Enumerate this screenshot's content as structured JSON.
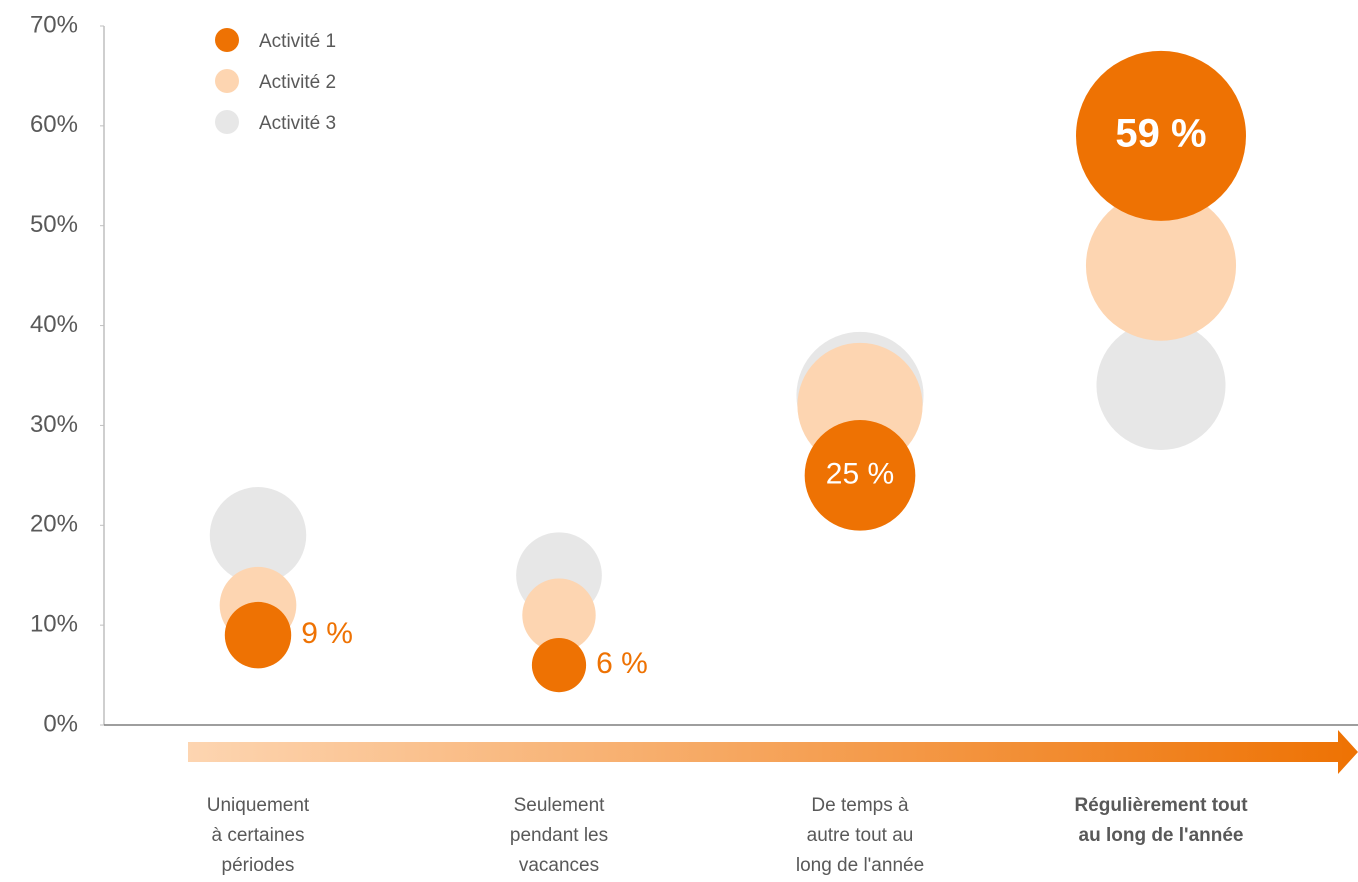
{
  "chart_data": {
    "type": "bubble",
    "categories": [
      [
        "Uniquement",
        "à certaines",
        "périodes"
      ],
      [
        "Seulement",
        "pendant les",
        "vacances"
      ],
      [
        "De temps à",
        "autre tout au",
        "long de l'année"
      ],
      [
        "Régulièrement tout",
        "au long de l'année"
      ]
    ],
    "series": [
      {
        "name": "Activité 1",
        "color": "#ee7203",
        "values": [
          9,
          6,
          25,
          59
        ],
        "value_labels": [
          "9 %",
          "6 %",
          "25 %",
          "59 %"
        ]
      },
      {
        "name": "Activité 2",
        "color": "#fdd5b1",
        "values": [
          12,
          11,
          32,
          46
        ]
      },
      {
        "name": "Activité 3",
        "color": "#e7e7e7",
        "values": [
          19,
          15,
          33,
          34
        ]
      }
    ],
    "ylim": [
      0,
      70
    ],
    "yticks": [
      {
        "value": 0,
        "label": "0%"
      },
      {
        "value": 10,
        "label": "10%"
      },
      {
        "value": 20,
        "label": "20%"
      },
      {
        "value": 30,
        "label": "30%"
      },
      {
        "value": 40,
        "label": "40%"
      },
      {
        "value": 50,
        "label": "50%"
      },
      {
        "value": 60,
        "label": "60%"
      },
      {
        "value": 70,
        "label": "70%"
      }
    ],
    "legend": "top-left"
  }
}
